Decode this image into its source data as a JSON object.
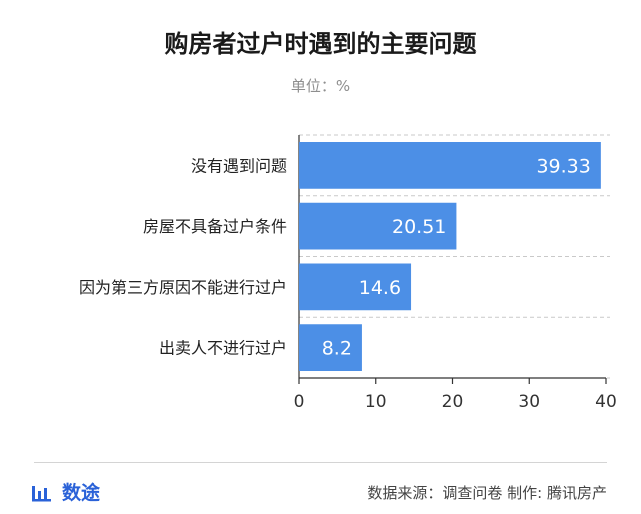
{
  "header": {
    "title": "购房者过户时遇到的主要问题",
    "subtitle": "单位：%"
  },
  "chart_data": {
    "type": "bar",
    "orientation": "horizontal",
    "categories": [
      "没有遇到问题",
      "房屋不具备过户条件",
      "因为第三方原因不能进行过户",
      "出卖人不进行过户"
    ],
    "values": [
      39.33,
      20.51,
      14.6,
      8.2
    ],
    "value_labels": [
      "39.33",
      "20.51",
      "14.6",
      "8.2"
    ],
    "xlim": [
      0,
      40
    ],
    "xticks": [
      0,
      10,
      20,
      30,
      40
    ],
    "grid": "dashed horizontal separators",
    "bar_color": "#4c8fe6",
    "label_color": "#ffffff"
  },
  "footer": {
    "brand": "数途",
    "source": "数据来源：调查问卷  制作: 腾讯房产",
    "brand_color": "#2a62d8"
  }
}
